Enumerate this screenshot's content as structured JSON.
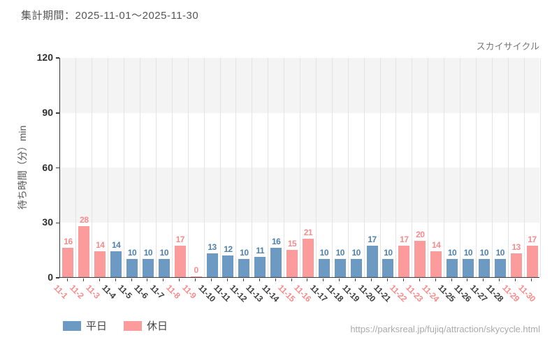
{
  "header": {
    "report_period": "集計期間：2025-11-01～2025-11-30"
  },
  "chart_data": {
    "type": "bar",
    "title": "スカイサイクル",
    "ylabel": "待ち時間（分）min",
    "xlabel": "",
    "ylim": [
      0,
      120
    ],
    "yticks": [
      0,
      30,
      60,
      90,
      120
    ],
    "grid": "vertical-lines-and-horizontal-bands",
    "legend_position": "bottom-left",
    "categories": [
      "11-1",
      "11-2",
      "11-3",
      "11-4",
      "11-5",
      "11-6",
      "11-7",
      "11-8",
      "11-9",
      "11-10",
      "11-11",
      "11-12",
      "11-13",
      "11-14",
      "11-15",
      "11-16",
      "11-17",
      "11-18",
      "11-19",
      "11-20",
      "11-21",
      "11-22",
      "11-23",
      "11-24",
      "11-25",
      "11-26",
      "11-27",
      "11-28",
      "11-29",
      "11-30"
    ],
    "values": [
      16,
      28,
      14,
      14,
      10,
      10,
      10,
      17,
      0,
      13,
      12,
      10,
      11,
      16,
      15,
      21,
      10,
      10,
      10,
      17,
      10,
      17,
      20,
      14,
      10,
      10,
      10,
      10,
      13,
      17
    ],
    "day_types": [
      "holiday",
      "holiday",
      "holiday",
      "weekday",
      "weekday",
      "weekday",
      "weekday",
      "holiday",
      "holiday",
      "weekday",
      "weekday",
      "weekday",
      "weekday",
      "weekday",
      "holiday",
      "holiday",
      "weekday",
      "weekday",
      "weekday",
      "weekday",
      "weekday",
      "holiday",
      "holiday",
      "holiday",
      "weekday",
      "weekday",
      "weekday",
      "weekday",
      "holiday",
      "holiday"
    ],
    "legend": [
      {
        "key": "weekday",
        "label": "平日",
        "color": "#6d9ac2"
      },
      {
        "key": "holiday",
        "label": "休日",
        "color": "#fb9b9b"
      }
    ]
  },
  "colors": {
    "weekday_bar": "#6d9ac2",
    "holiday_bar": "#fb9b9b",
    "weekday_value_label": "#4f81ad",
    "holiday_value_label": "#f98b8b",
    "weekday_date_label": "#3f3f3f",
    "holiday_date_label": "#f98b8b",
    "axis": "#3a3a3a",
    "gridline": "#e3e3e3",
    "band": "#f4f4f4"
  },
  "footer": {
    "url": "https://parksreal.jp/fujiq/attraction/skycycle.html"
  }
}
